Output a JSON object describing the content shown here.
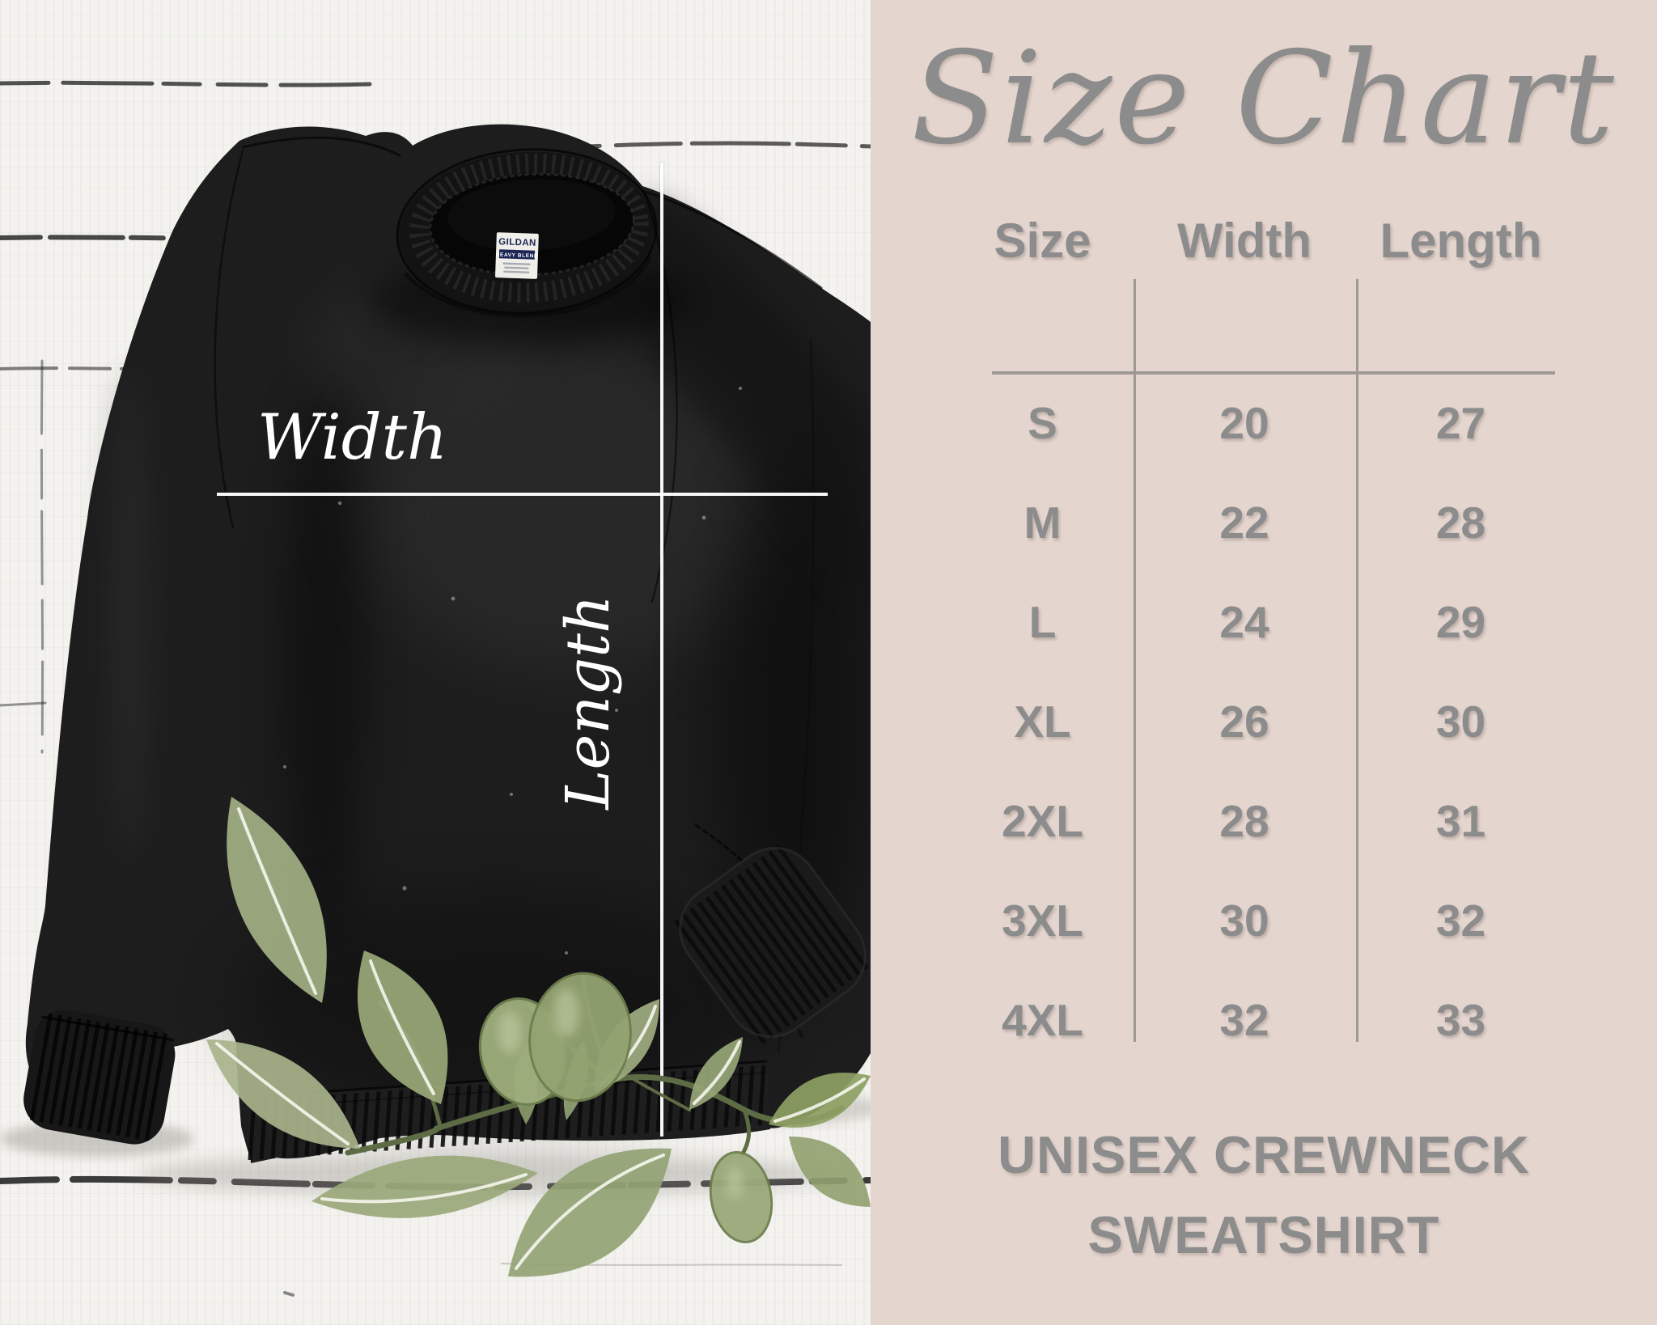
{
  "title": "Size Chart",
  "photo": {
    "width_label": "Width",
    "length_label": "Length",
    "tag_brand": "GILDAN",
    "tag_line": "HEAVY BLEND"
  },
  "chart_data": {
    "type": "table",
    "title": "Size Chart",
    "columns": [
      "Size",
      "Width",
      "Length"
    ],
    "rows": [
      [
        "S",
        "20",
        "27"
      ],
      [
        "M",
        "22",
        "28"
      ],
      [
        "L",
        "24",
        "29"
      ],
      [
        "XL",
        "26",
        "30"
      ],
      [
        "2XL",
        "28",
        "31"
      ],
      [
        "3XL",
        "30",
        "32"
      ],
      [
        "4XL",
        "32",
        "33"
      ]
    ],
    "footer": "UNISEX CREWNECK SWEATSHIRT",
    "grid": "column dividers and header underline only",
    "legend_position": "none"
  },
  "colors": {
    "panel_bg": "#e4d6cf",
    "text_gray": "#8c8c8c",
    "line_gray": "#9e9995",
    "wood": "#f3f2ee",
    "fabric_black": "#1d1d1d",
    "leaf_green": "#9aa87b",
    "stem_green": "#5d6c44",
    "measure_white": "#ffffff",
    "tag_navy": "#1c2553"
  }
}
